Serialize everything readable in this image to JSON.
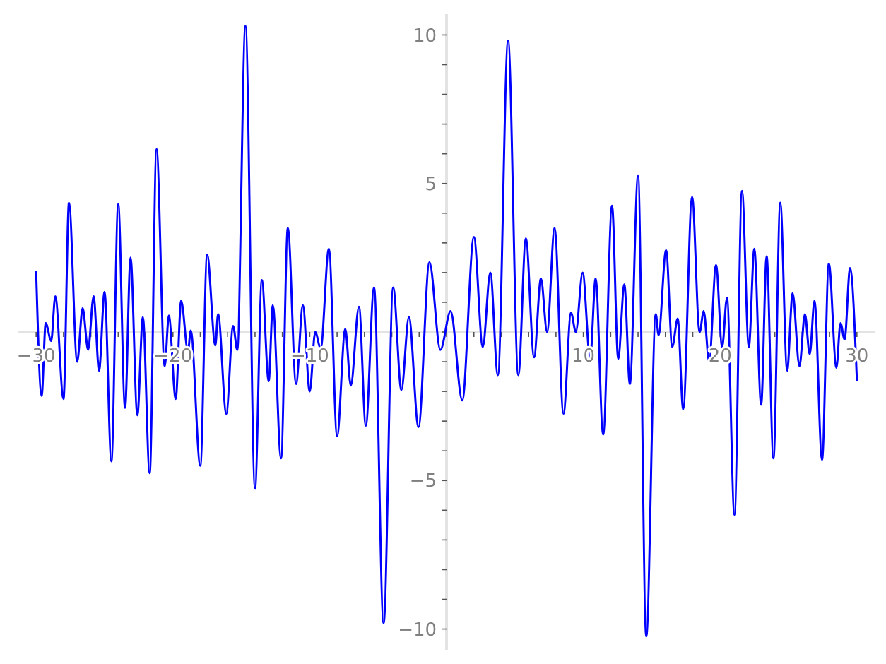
{
  "chart_data": {
    "type": "line",
    "xlim": [
      -31.3,
      31.3
    ],
    "ylim": [
      -10.7,
      10.7
    ],
    "xticks": [
      {
        "value": -30,
        "label": "−30"
      },
      {
        "value": -28,
        "label": null
      },
      {
        "value": -26,
        "label": null
      },
      {
        "value": -24,
        "label": null
      },
      {
        "value": -22,
        "label": null
      },
      {
        "value": -20,
        "label": "−20"
      },
      {
        "value": -18,
        "label": null
      },
      {
        "value": -16,
        "label": null
      },
      {
        "value": -14,
        "label": null
      },
      {
        "value": -12,
        "label": null
      },
      {
        "value": -10,
        "label": "−10"
      },
      {
        "value": -8,
        "label": null
      },
      {
        "value": -6,
        "label": null
      },
      {
        "value": -4,
        "label": null
      },
      {
        "value": -2,
        "label": null
      },
      {
        "value": 0,
        "label": null
      },
      {
        "value": 2,
        "label": null
      },
      {
        "value": 4,
        "label": null
      },
      {
        "value": 6,
        "label": null
      },
      {
        "value": 8,
        "label": null
      },
      10,
      {
        "value": 12,
        "label": null
      },
      {
        "value": 14,
        "label": null
      },
      {
        "value": 16,
        "label": null
      },
      {
        "value": 18,
        "label": null
      },
      20,
      {
        "value": 22,
        "label": null
      },
      {
        "value": 24,
        "label": null
      },
      {
        "value": 26,
        "label": null
      },
      {
        "value": 28,
        "label": null
      },
      30
    ],
    "yticks": [
      {
        "value": -10,
        "label": "−10"
      },
      {
        "value": -9,
        "label": null
      },
      {
        "value": -8,
        "label": null
      },
      {
        "value": -7,
        "label": null
      },
      {
        "value": -6,
        "label": null
      },
      {
        "value": -5,
        "label": "−5"
      },
      {
        "value": -4,
        "label": null
      },
      {
        "value": -3,
        "label": null
      },
      {
        "value": -2,
        "label": null
      },
      {
        "value": -1,
        "label": null
      },
      {
        "value": 0,
        "label": null
      },
      {
        "value": 1,
        "label": null
      },
      {
        "value": 2,
        "label": null
      },
      {
        "value": 3,
        "label": null
      },
      {
        "value": 4,
        "label": null
      },
      5,
      {
        "value": 6,
        "label": null
      },
      {
        "value": 7,
        "label": null
      },
      {
        "value": 8,
        "label": null
      },
      {
        "value": 9,
        "label": null
      },
      10
    ],
    "series": [
      {
        "color": "#0000ff",
        "x": [
          -30,
          -29.6,
          -29.3,
          -28.9,
          -28.6,
          -28.0,
          -27.6,
          -27.0,
          -26.6,
          -26.2,
          -25.8,
          -25.4,
          -25.0,
          -24.5,
          -24.0,
          -23.5,
          -23.1,
          -22.6,
          -22.2,
          -21.7,
          -21.2,
          -20.6,
          -20.3,
          -19.8,
          -19.4,
          -18.9,
          -18.7,
          -18.0,
          -17.5,
          -16.9,
          -16.7,
          -16.1,
          -15.6,
          -15.3,
          -14.7,
          -14.0,
          -13.5,
          -13.0,
          -12.7,
          -12.1,
          -11.6,
          -11.0,
          -10.5,
          -10.0,
          -9.6,
          -9.2,
          -8.6,
          -8.0,
          -7.4,
          -7.0,
          -6.4,
          -5.9,
          -5.3,
          -4.6,
          -3.9,
          -3.3,
          -2.75,
          -2.05,
          -1.25,
          -0.45,
          0.3,
          1.15,
          2.0,
          2.65,
          3.2,
          3.75,
          4.5,
          5.25,
          5.8,
          6.4,
          6.9,
          7.35,
          7.9,
          8.55,
          9.1,
          9.45,
          9.95,
          10.5,
          10.9,
          11.45,
          12.1,
          12.55,
          13.0,
          13.4,
          14.0,
          14.6,
          15.3,
          15.5,
          16.05,
          16.5,
          16.9,
          17.3,
          17.95,
          18.5,
          18.8,
          19.2,
          19.7,
          20.15,
          20.5,
          21.05,
          21.6,
          22.1,
          22.5,
          23.0,
          23.4,
          23.9,
          24.4,
          24.9,
          25.3,
          25.8,
          26.2,
          26.55,
          26.9,
          27.45,
          27.95,
          28.5,
          28.8,
          29.1,
          29.5,
          30.0
        ],
        "values": [
          2.05,
          -2.15,
          0.3,
          -0.3,
          1.2,
          -2.25,
          4.35,
          -1.0,
          0.8,
          -0.6,
          1.2,
          -1.3,
          1.35,
          -4.35,
          4.3,
          -2.55,
          2.5,
          -2.8,
          0.5,
          -4.75,
          6.15,
          -1.15,
          0.55,
          -2.25,
          1.05,
          -0.65,
          0.05,
          -4.5,
          2.6,
          -0.45,
          0.6,
          -2.75,
          0.2,
          -0.6,
          10.3,
          -5.25,
          1.75,
          -1.65,
          0.9,
          -4.25,
          3.5,
          -1.75,
          0.9,
          -2.0,
          0.0,
          -0.55,
          2.8,
          -3.5,
          0.1,
          -1.8,
          0.85,
          -3.15,
          1.5,
          -9.8,
          1.5,
          -1.95,
          0.5,
          -3.2,
          2.35,
          -0.6,
          0.7,
          -2.3,
          3.2,
          -0.5,
          2.0,
          -1.45,
          9.8,
          -1.45,
          3.15,
          -0.85,
          1.8,
          0.0,
          3.5,
          -2.75,
          0.65,
          0.0,
          2.0,
          -0.9,
          1.8,
          -3.45,
          4.25,
          -0.9,
          1.6,
          -1.75,
          5.25,
          -10.25,
          0.6,
          -0.1,
          2.75,
          -0.5,
          0.45,
          -2.6,
          4.55,
          0.0,
          0.7,
          -1.0,
          2.25,
          -0.5,
          1.15,
          -6.15,
          4.75,
          -0.5,
          2.8,
          -2.45,
          2.55,
          -4.25,
          4.35,
          -1.3,
          1.3,
          -1.15,
          0.6,
          -0.75,
          1.05,
          -4.3,
          2.3,
          -1.2,
          0.3,
          -0.25,
          2.15,
          -1.65
        ]
      }
    ]
  }
}
